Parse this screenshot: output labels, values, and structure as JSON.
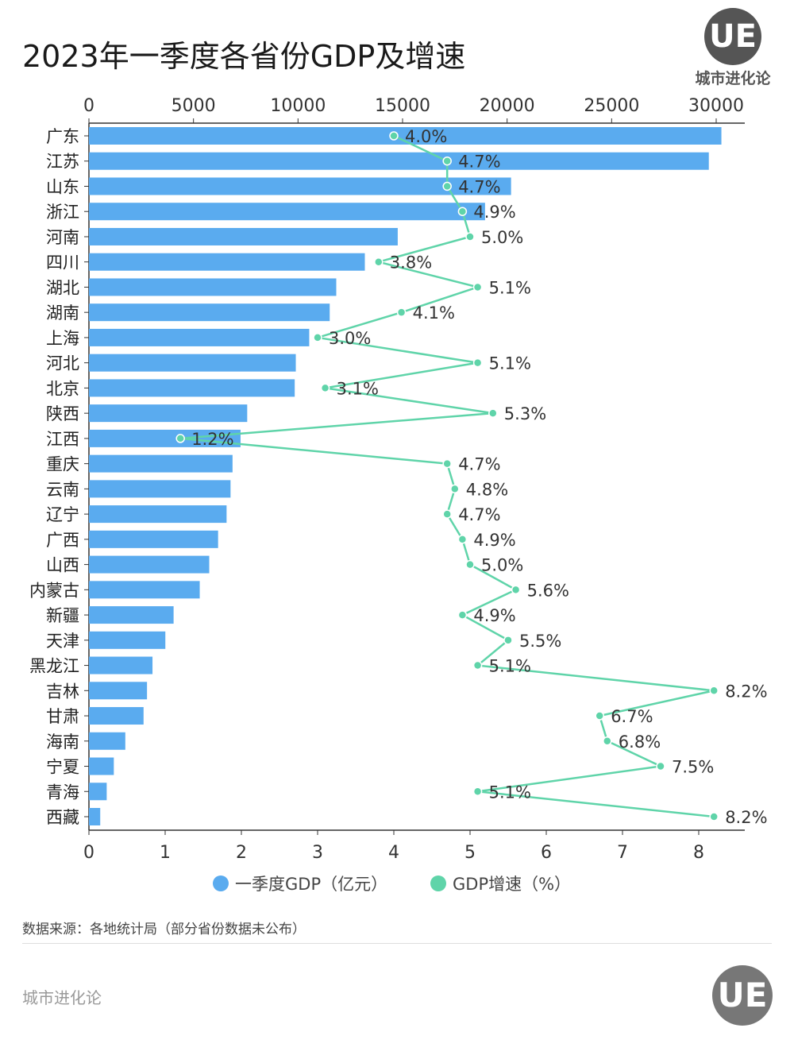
{
  "title": "2023年一季度各省份GDP及增速",
  "brand": {
    "logo_text": "UE",
    "name": "城市进化论"
  },
  "source": "数据来源：各地统计局（部分省份数据未公布）",
  "footer": "城市进化论",
  "colors": {
    "bar": "#5aabef",
    "line": "#5fd4a9"
  },
  "chart_data": {
    "type": "bar+line",
    "orientation": "horizontal",
    "categories": [
      "广东",
      "江苏",
      "山东",
      "浙江",
      "河南",
      "四川",
      "湖北",
      "湖南",
      "上海",
      "河北",
      "北京",
      "陕西",
      "江西",
      "重庆",
      "云南",
      "辽宁",
      "广西",
      "山西",
      "内蒙古",
      "新疆",
      "天津",
      "黑龙江",
      "吉林",
      "甘肃",
      "海南",
      "宁夏",
      "青海",
      "西藏"
    ],
    "series": [
      {
        "name": "一季度GDP（亿元）",
        "type": "bar",
        "axis": "top",
        "values": [
          30249,
          29648,
          20189,
          18945,
          14769,
          13196,
          11829,
          11516,
          10536,
          9894,
          9842,
          7570,
          7251,
          6868,
          6773,
          6583,
          6177,
          5754,
          5300,
          4049,
          3655,
          3040,
          2778,
          2613,
          1740,
          1190,
          850,
          540
        ]
      },
      {
        "name": "GDP增速（%）",
        "type": "line",
        "axis": "bottom",
        "values": [
          4.0,
          4.7,
          4.7,
          4.9,
          5.0,
          3.8,
          5.1,
          4.1,
          3.0,
          5.1,
          3.1,
          5.3,
          1.2,
          4.7,
          4.8,
          4.7,
          4.9,
          5.0,
          5.6,
          4.9,
          5.5,
          5.1,
          8.2,
          6.7,
          6.8,
          7.5,
          5.1,
          8.2
        ],
        "labels": [
          "4.0%",
          "4.7%",
          "4.7%",
          "4.9%",
          "5.0%",
          "3.8%",
          "5.1%",
          "4.1%",
          "3.0%",
          "5.1%",
          "3.1%",
          "5.3%",
          "1.2%",
          "4.7%",
          "4.8%",
          "4.7%",
          "4.9%",
          "5.0%",
          "5.6%",
          "4.9%",
          "5.5%",
          "5.1%",
          "8.2%",
          "6.7%",
          "6.8%",
          "7.5%",
          "5.1%",
          "8.2%"
        ]
      }
    ],
    "top_axis": {
      "range": [
        0,
        31000
      ],
      "ticks": [
        "0",
        "5000",
        "10000",
        "15000",
        "20000",
        "25000",
        "30000"
      ]
    },
    "bottom_axis": {
      "range": [
        0,
        8.5
      ],
      "ticks": [
        "0",
        "1",
        "2",
        "3",
        "4",
        "5",
        "6",
        "7",
        "8"
      ]
    },
    "legend": {
      "placement": "bottom",
      "items": [
        "一季度GDP（亿元）",
        "GDP增速（%）"
      ]
    },
    "grid": false
  }
}
